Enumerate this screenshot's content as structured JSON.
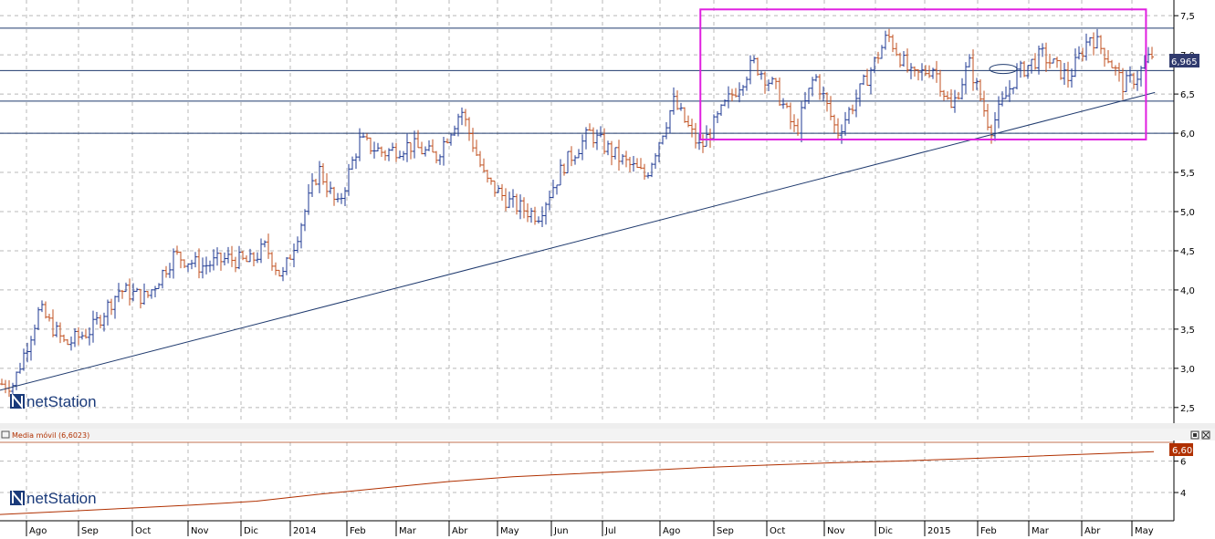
{
  "chart_data": [
    {
      "type": "ohlc",
      "panel": "price",
      "ylim": [
        2.3,
        7.7
      ],
      "y_ticks": [
        2.5,
        3.0,
        3.5,
        4.0,
        4.5,
        5.0,
        5.5,
        6.0,
        6.5,
        7.0,
        7.5
      ],
      "y_tick_labels": [
        "2,5",
        "3,0",
        "3,5",
        "4,0",
        "4,5",
        "5,0",
        "5,5",
        "6,0",
        "6,5",
        "7,0",
        "7,5"
      ],
      "last_value_label": "6,965",
      "last_value": 6.965,
      "grid": true,
      "horizontal_levels": [
        7.34,
        6.8,
        6.41,
        6.0
      ],
      "trendline": {
        "from": [
          "2013-07",
          2.72
        ],
        "to": [
          "2015-05",
          6.52
        ]
      },
      "highlight_box": {
        "x_from": "2014-08",
        "x_to": "2015-05",
        "y_from": 5.92,
        "y_to": 7.58,
        "color": "#e020e0"
      },
      "ellipse_marker": {
        "x": "2015-02",
        "y": 6.82
      },
      "close_path": [
        [
          "2013-07",
          2.8
        ],
        [
          "2013-08",
          3.75
        ],
        [
          "2013-08",
          3.3
        ],
        [
          "2013-09",
          3.5
        ],
        [
          "2013-09",
          4.0
        ],
        [
          "2013-10",
          3.9
        ],
        [
          "2013-10",
          4.45
        ],
        [
          "2013-11",
          4.3
        ],
        [
          "2013-11",
          4.4
        ],
        [
          "2013-12",
          4.35
        ],
        [
          "2013-12",
          4.55
        ],
        [
          "2013-12",
          4.15
        ],
        [
          "2014-01",
          4.8
        ],
        [
          "2014-01",
          5.55
        ],
        [
          "2014-01",
          5.05
        ],
        [
          "2014-02",
          5.9
        ],
        [
          "2014-02",
          5.75
        ],
        [
          "2014-03",
          5.85
        ],
        [
          "2014-03",
          5.7
        ],
        [
          "2014-04",
          6.3
        ],
        [
          "2014-04",
          5.4
        ],
        [
          "2014-05",
          5.1
        ],
        [
          "2014-05",
          4.95
        ],
        [
          "2014-06",
          5.6
        ],
        [
          "2014-06",
          6.0
        ],
        [
          "2014-07",
          5.7
        ],
        [
          "2014-07",
          5.45
        ],
        [
          "2014-08",
          6.4
        ],
        [
          "2014-08",
          5.8
        ],
        [
          "2014-09",
          6.4
        ],
        [
          "2014-09",
          6.9
        ],
        [
          "2014-10",
          6.55
        ],
        [
          "2014-10",
          6.0
        ],
        [
          "2014-10",
          6.75
        ],
        [
          "2014-11",
          6.0
        ],
        [
          "2014-11",
          6.6
        ],
        [
          "2014-12",
          7.25
        ],
        [
          "2014-12",
          6.7
        ],
        [
          "2015-01",
          6.85
        ],
        [
          "2015-01",
          6.3
        ],
        [
          "2015-01",
          6.9
        ],
        [
          "2015-02",
          6.05
        ],
        [
          "2015-02",
          6.75
        ],
        [
          "2015-03",
          7.0
        ],
        [
          "2015-03",
          6.7
        ],
        [
          "2015-04",
          7.25
        ],
        [
          "2015-04",
          7.0
        ],
        [
          "2015-04",
          6.6
        ],
        [
          "2015-05",
          6.75
        ],
        [
          "2015-05",
          7.0
        ]
      ]
    },
    {
      "type": "line",
      "panel": "indicator",
      "title": "Media móvil (6,6023)",
      "ylim": [
        2.2,
        7.2
      ],
      "y_ticks": [
        4,
        6
      ],
      "y_tick_labels": [
        "4",
        "6"
      ],
      "last_value_label": "6,60",
      "grid": true,
      "series": [
        {
          "values": [
            2.6,
            2.8,
            3.0,
            3.2,
            3.45,
            3.9,
            4.3,
            4.7,
            5.0,
            5.2,
            5.4,
            5.6,
            5.75,
            5.9,
            6.0,
            6.15,
            6.3,
            6.45,
            6.6
          ],
          "color": "#b03000"
        }
      ]
    }
  ],
  "x_axis": {
    "labels": [
      "Ago",
      "Sep",
      "Oct",
      "Nov",
      "Dic",
      "2014",
      "Feb",
      "Mar",
      "Abr",
      "May",
      "Jun",
      "Jul",
      "Ago",
      "Sep",
      "Oct",
      "Nov",
      "Dic",
      "2015",
      "Feb",
      "Mar",
      "Abr",
      "May"
    ]
  },
  "logo": {
    "text": "netStation",
    "mark": "N"
  },
  "colors": {
    "up": "#1f3a93",
    "down": "#c05020",
    "level": "#1f3a6e",
    "box": "#e020e0",
    "ma": "#b03000",
    "grid": "#b8b8b8"
  },
  "indicator_panel": {
    "title": "Media móvil (6,6023)"
  }
}
